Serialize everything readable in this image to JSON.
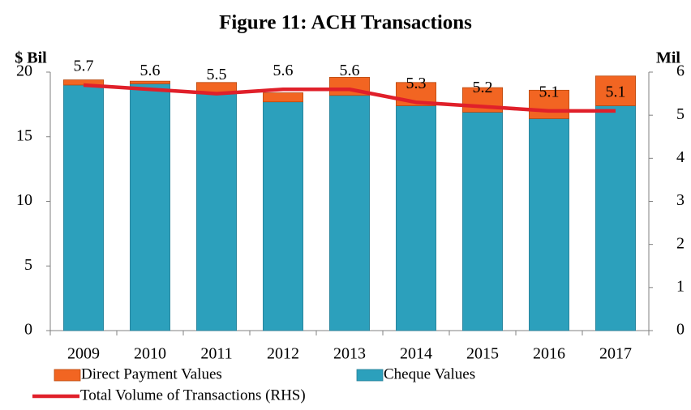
{
  "chart_data": {
    "type": "bar",
    "title": "Figure 11: ACH Transactions",
    "y_label": "$ Bil",
    "y2_label": "Mil",
    "categories": [
      "2009",
      "2010",
      "2011",
      "2012",
      "2013",
      "2014",
      "2015",
      "2016",
      "2017"
    ],
    "series": [
      {
        "name": "Direct Payment Values",
        "color": "#f26522",
        "values": [
          0.4,
          0.2,
          0.8,
          0.7,
          1.4,
          1.8,
          1.9,
          2.2,
          2.3
        ]
      },
      {
        "name": "Cheque Values",
        "color": "#2ca0bc",
        "values": [
          19.0,
          19.1,
          18.4,
          17.7,
          18.2,
          17.4,
          16.9,
          16.4,
          17.4
        ]
      },
      {
        "name": "Total Volume of Transactions (RHS)",
        "color": "#e0202a",
        "axis": "y2",
        "values": [
          5.7,
          5.6,
          5.5,
          5.6,
          5.6,
          5.3,
          5.2,
          5.1,
          5.1
        ]
      }
    ],
    "ylim": [
      0,
      20
    ],
    "yticks": [
      0,
      5,
      10,
      15,
      20
    ],
    "y2lim": [
      0,
      6
    ],
    "y2ticks": [
      0,
      1,
      2,
      3,
      4,
      5,
      6
    ],
    "grid": false
  }
}
